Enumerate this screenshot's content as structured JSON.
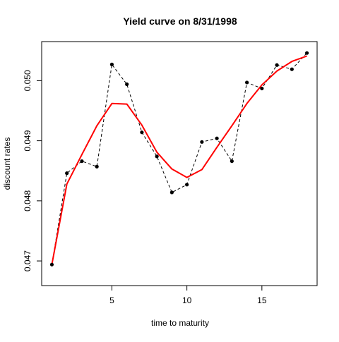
{
  "chart_data": {
    "type": "line",
    "title": "Yield curve on 8/31/1998",
    "xlabel": "time to maturity",
    "ylabel": "discount rates",
    "xlim": [
      0.32,
      18.68
    ],
    "ylim": [
      0.04659,
      0.05065
    ],
    "x_ticks": [
      5,
      10,
      15
    ],
    "x_tick_labels": [
      "5",
      "10",
      "15"
    ],
    "y_ticks": [
      0.047,
      0.048,
      0.049,
      0.05
    ],
    "y_tick_labels": [
      "0.047",
      "0.048",
      "0.049",
      "0.050"
    ],
    "grid": false,
    "legend": "none",
    "series": [
      {
        "style": "dashed-with-points",
        "color": "#000000",
        "x": [
          1,
          2,
          3,
          4,
          5,
          6,
          7,
          8,
          9,
          10,
          11,
          12,
          13,
          14,
          15,
          16,
          17,
          18
        ],
        "y": [
          0.04694,
          0.04846,
          0.04866,
          0.04857,
          0.05027,
          0.04994,
          0.04914,
          0.04874,
          0.04814,
          0.04827,
          0.04898,
          0.04904,
          0.04866,
          0.04997,
          0.04987,
          0.05026,
          0.05019,
          0.05046
        ]
      },
      {
        "style": "solid",
        "color": "#ff0000",
        "x": [
          1,
          2,
          3,
          4,
          5,
          6,
          7,
          8,
          9,
          10,
          11,
          12,
          13,
          14,
          15,
          16,
          17,
          18
        ],
        "y": [
          0.04694,
          0.04828,
          0.04877,
          0.04925,
          0.04962,
          0.04961,
          0.04926,
          0.04881,
          0.04853,
          0.04839,
          0.04852,
          0.04889,
          0.04925,
          0.04962,
          0.04993,
          0.05016,
          0.05032,
          0.05041
        ]
      }
    ]
  }
}
